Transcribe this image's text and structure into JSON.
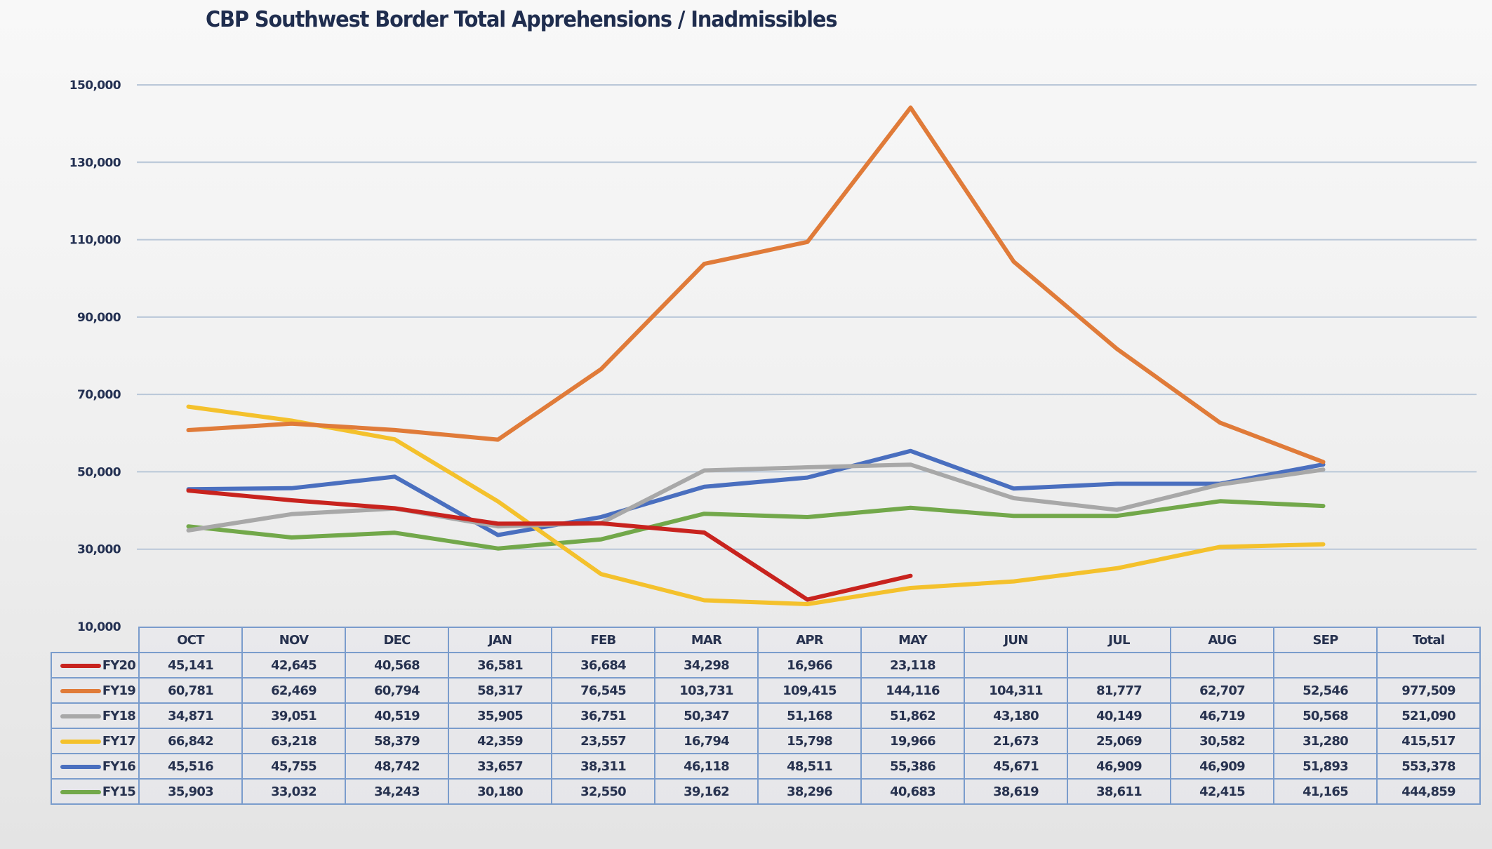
{
  "chart_data": {
    "type": "line",
    "title": "CBP Southwest Border Total Apprehensions / Inadmissibles",
    "xlabel": "",
    "ylabel": "",
    "ylim": [
      10000,
      150000
    ],
    "yticks": [
      150000,
      130000,
      110000,
      90000,
      70000,
      50000,
      30000,
      10000
    ],
    "ytick_labels": [
      "150,000",
      "130,000",
      "110,000",
      "90,000",
      "70,000",
      "50,000",
      "30,000",
      "10,000"
    ],
    "grid": true,
    "legend_position": "bottom-left (data table)",
    "categories": [
      "OCT",
      "NOV",
      "DEC",
      "JAN",
      "FEB",
      "MAR",
      "APR",
      "MAY",
      "JUN",
      "JUL",
      "AUG",
      "SEP"
    ],
    "total_header": "Total",
    "series": [
      {
        "name": "FY20",
        "color": "#c8231e",
        "values": [
          45141,
          42645,
          40568,
          36581,
          36684,
          34298,
          16966,
          23118,
          null,
          null,
          null,
          null
        ],
        "labels": [
          "45,141",
          "42,645",
          "40,568",
          "36,581",
          "36,684",
          "34,298",
          "16,966",
          "23,118",
          "",
          "",
          "",
          ""
        ],
        "total": ""
      },
      {
        "name": "FY19",
        "color": "#e07b39",
        "values": [
          60781,
          62469,
          60794,
          58317,
          76545,
          103731,
          109415,
          144116,
          104311,
          81777,
          62707,
          52546
        ],
        "labels": [
          "60,781",
          "62,469",
          "60,794",
          "58,317",
          "76,545",
          "103,731",
          "109,415",
          "144,116",
          "104,311",
          "81,777",
          "62,707",
          "52,546"
        ],
        "total": "977,509"
      },
      {
        "name": "FY18",
        "color": "#a8a8a8",
        "values": [
          34871,
          39051,
          40519,
          35905,
          36751,
          50347,
          51168,
          51862,
          43180,
          40149,
          46719,
          50568
        ],
        "labels": [
          "34,871",
          "39,051",
          "40,519",
          "35,905",
          "36,751",
          "50,347",
          "51,168",
          "51,862",
          "43,180",
          "40,149",
          "46,719",
          "50,568"
        ],
        "total": "521,090"
      },
      {
        "name": "FY17",
        "color": "#f4c12c",
        "values": [
          66842,
          63218,
          58379,
          42359,
          23557,
          16794,
          15798,
          19966,
          21673,
          25069,
          30582,
          31280
        ],
        "labels": [
          "66,842",
          "63,218",
          "58,379",
          "42,359",
          "23,557",
          "16,794",
          "15,798",
          "19,966",
          "21,673",
          "25,069",
          "30,582",
          "31,280"
        ],
        "total": "415,517"
      },
      {
        "name": "FY16",
        "color": "#4a6fbf",
        "values": [
          45516,
          45755,
          48742,
          33657,
          38311,
          46118,
          48511,
          55386,
          45671,
          46909,
          46909,
          51893
        ],
        "labels": [
          "45,516",
          "45,755",
          "48,742",
          "33,657",
          "38,311",
          "46,118",
          "48,511",
          "55,386",
          "45,671",
          "46,909",
          "46,909",
          "51,893"
        ],
        "total": "553,378"
      },
      {
        "name": "FY15",
        "color": "#72a84a",
        "values": [
          35903,
          33032,
          34243,
          30180,
          32550,
          39162,
          38296,
          40683,
          38619,
          38611,
          42415,
          41165
        ],
        "labels": [
          "35,903",
          "33,032",
          "34,243",
          "30,180",
          "32,550",
          "39,162",
          "38,296",
          "40,683",
          "38,619",
          "38,611",
          "42,415",
          "41,165"
        ],
        "total": "444,859"
      }
    ]
  }
}
